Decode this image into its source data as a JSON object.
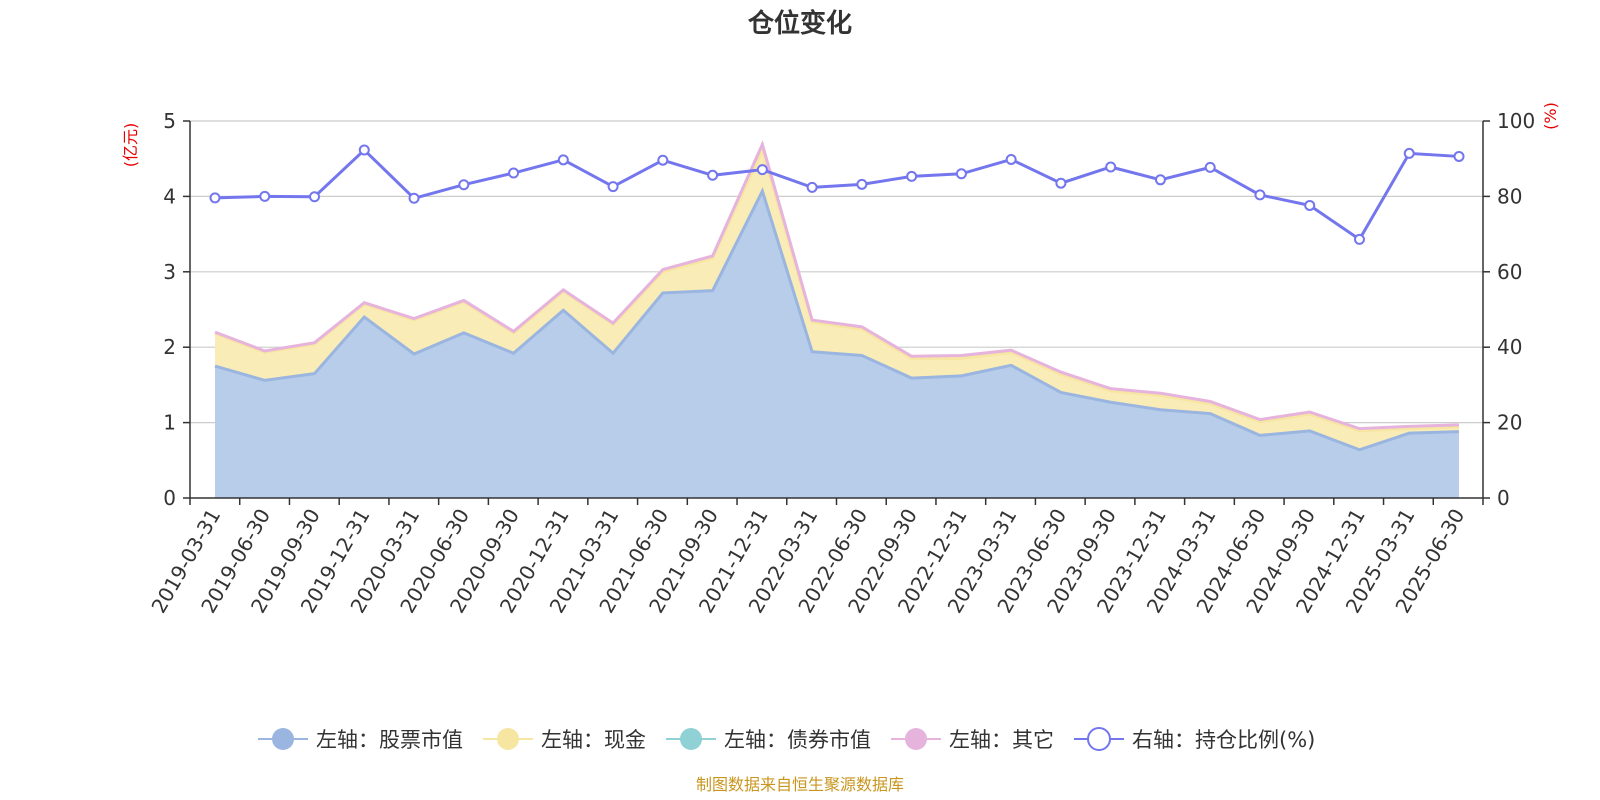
{
  "chart_data": {
    "type": "area",
    "title": "仓位变化",
    "footer": "制图数据来自恒生聚源数据库",
    "left_unit": "(亿元)",
    "right_unit": "(%)",
    "y_left_lim": [
      0,
      5
    ],
    "y_left_ticks": [
      "0",
      "1",
      "2",
      "3",
      "4",
      "5"
    ],
    "y_right_lim": [
      0,
      100
    ],
    "y_right_ticks": [
      "0",
      "20",
      "40",
      "60",
      "80",
      "100"
    ],
    "grid": true,
    "legend_position": "bottom",
    "categories": [
      "2019-03-31",
      "2019-06-30",
      "2019-09-30",
      "2019-12-31",
      "2020-03-31",
      "2020-06-30",
      "2020-09-30",
      "2020-12-31",
      "2021-03-31",
      "2021-06-30",
      "2021-09-30",
      "2021-12-31",
      "2022-03-31",
      "2022-06-30",
      "2022-09-30",
      "2022-12-31",
      "2023-03-31",
      "2023-06-30",
      "2023-09-30",
      "2023-12-31",
      "2024-03-31",
      "2024-06-30",
      "2024-09-30",
      "2024-12-31",
      "2025-03-31",
      "2025-06-30"
    ],
    "series": [
      {
        "name": "左轴：股票市值",
        "axis": "left",
        "kind": "stacked-area",
        "color": "#9ab5df",
        "fill": "#b8cdea",
        "values": [
          1.75,
          1.56,
          1.65,
          2.4,
          1.91,
          2.19,
          1.92,
          2.49,
          1.92,
          2.72,
          2.75,
          4.07,
          1.94,
          1.89,
          1.59,
          1.62,
          1.76,
          1.4,
          1.27,
          1.17,
          1.12,
          0.83,
          0.89,
          0.64,
          0.86,
          0.88
        ]
      },
      {
        "name": "左轴：现金",
        "axis": "left",
        "kind": "stacked-area",
        "color": "#f7e6a2",
        "fill": "#faecb7",
        "values": [
          0.43,
          0.37,
          0.39,
          0.17,
          0.45,
          0.41,
          0.27,
          0.25,
          0.38,
          0.28,
          0.43,
          0.54,
          0.39,
          0.35,
          0.26,
          0.23,
          0.17,
          0.24,
          0.15,
          0.19,
          0.13,
          0.18,
          0.22,
          0.25,
          0.06,
          0.06
        ]
      },
      {
        "name": "左轴：债券市值",
        "axis": "left",
        "kind": "stacked-area",
        "color": "#8fd1d4",
        "fill": "#8fd1d4",
        "values": [
          0,
          0,
          0,
          0,
          0,
          0,
          0,
          0,
          0,
          0,
          0,
          0,
          0,
          0,
          0,
          0,
          0,
          0,
          0,
          0,
          0,
          0,
          0,
          0,
          0,
          0
        ]
      },
      {
        "name": "左轴：其它",
        "axis": "left",
        "kind": "stacked-area",
        "color": "#e6b3dc",
        "fill": "#e6b3dc",
        "values": [
          0.02,
          0.02,
          0.02,
          0.02,
          0.02,
          0.02,
          0.02,
          0.02,
          0.02,
          0.03,
          0.03,
          0.08,
          0.03,
          0.03,
          0.03,
          0.04,
          0.03,
          0.03,
          0.03,
          0.03,
          0.03,
          0.03,
          0.03,
          0.03,
          0.03,
          0.03
        ]
      },
      {
        "name": "右轴：持仓比例(%)",
        "axis": "right",
        "kind": "line",
        "color": "#7476ee",
        "values": [
          79.6,
          80.0,
          79.9,
          92.3,
          79.5,
          83.1,
          86.2,
          89.7,
          82.6,
          89.6,
          85.6,
          87.1,
          82.4,
          83.2,
          85.3,
          86.0,
          89.8,
          83.5,
          87.8,
          84.4,
          87.7,
          80.4,
          77.6,
          68.6,
          91.4,
          90.6
        ]
      }
    ]
  }
}
